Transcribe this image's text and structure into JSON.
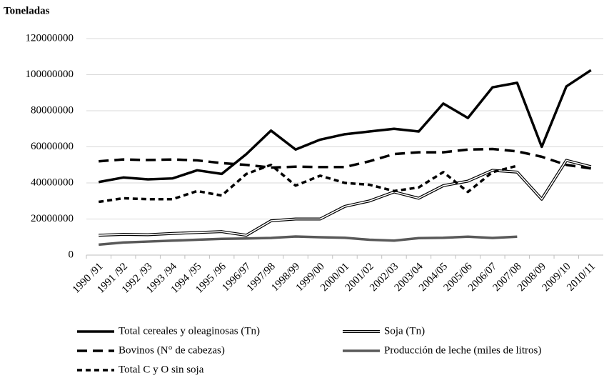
{
  "chart_data": {
    "type": "line",
    "y_axis_title": "Toneladas",
    "categories": [
      "1990 /91",
      "1991 /92",
      "1992 /93",
      "1993 /94",
      "1994 /95",
      "1995 /96",
      "1996/97",
      "1997/98",
      "1998/99",
      "1999/00",
      "2000/01",
      "2001/02",
      "2002/03",
      "2003/04",
      "2004/05",
      "2005/06",
      "2006/07",
      "2007/08",
      "2008/09",
      "2009/10",
      "2010/11"
    ],
    "series": [
      {
        "name": "Total cereales y oleaginosas (Tn)",
        "color": "#000000",
        "style": "solid",
        "values": [
          40500000,
          43000000,
          42000000,
          42500000,
          47000000,
          45000000,
          56000000,
          69000000,
          58500000,
          64000000,
          67000000,
          68500000,
          70000000,
          68500000,
          84000000,
          76000000,
          93000000,
          95500000,
          60000000,
          93500000,
          102500000
        ]
      },
      {
        "name": "Soja (Tn)",
        "color": "#000000",
        "style": "double",
        "values": [
          11000000,
          11500000,
          11300000,
          12000000,
          12500000,
          13000000,
          11000000,
          19000000,
          20000000,
          20000000,
          27000000,
          30000000,
          35000000,
          31500000,
          38500000,
          41000000,
          47000000,
          46000000,
          31000000,
          52500000,
          49000000
        ]
      },
      {
        "name": "Bovinos (N° de cabezas)",
        "color": "#000000",
        "style": "dash",
        "values": [
          52000000,
          53000000,
          52700000,
          53000000,
          52500000,
          51000000,
          50000000,
          48500000,
          49000000,
          48800000,
          48800000,
          52000000,
          56000000,
          57000000,
          57000000,
          58500000,
          58800000,
          57500000,
          54500000,
          50000000,
          48000000
        ]
      },
      {
        "name": "Producción de leche (miles de litros)",
        "color": "#595959",
        "style": "solid",
        "values": [
          5800000,
          7000000,
          7500000,
          8000000,
          8500000,
          9000000,
          9200000,
          9500000,
          10300000,
          9900000,
          9600000,
          8500000,
          8000000,
          9400000,
          9600000,
          10200000,
          9500000,
          10200000,
          null,
          null,
          null
        ]
      },
      {
        "name": "Total C y O sin soja",
        "color": "#000000",
        "style": "shortdash",
        "values": [
          29500000,
          31500000,
          31000000,
          31000000,
          35500000,
          33000000,
          45000000,
          50000000,
          38500000,
          44000000,
          40000000,
          39000000,
          35500000,
          37500000,
          46000000,
          35000000,
          46000000,
          49500000,
          null,
          null,
          null
        ]
      }
    ],
    "ylim": [
      0,
      120000000
    ],
    "yticks": [
      0,
      20000000,
      40000000,
      60000000,
      80000000,
      100000000,
      120000000
    ],
    "grid": true
  }
}
